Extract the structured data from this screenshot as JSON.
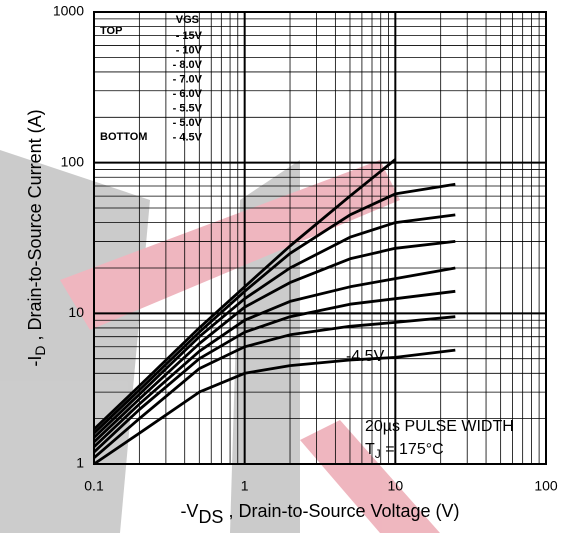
{
  "chart_data": {
    "type": "line",
    "x_label": {
      "prefix": "-V",
      "sub": "DS",
      "rest": " , Drain-to-Source Voltage (V)"
    },
    "y_label": {
      "prefix": "-I",
      "sub": "D",
      "rest": " , Drain-to-Source Current (A)"
    },
    "x": [
      0.1,
      0.2,
      0.5,
      1,
      2,
      5,
      10,
      25
    ],
    "series": [
      {
        "name": "- 15V",
        "color": "#000000",
        "values": [
          1.7,
          3.3,
          8,
          15,
          28,
          60,
          105,
          null
        ]
      },
      {
        "name": "- 10V",
        "color": "#000000",
        "values": [
          1.6,
          3.1,
          7.5,
          14,
          25,
          45,
          62,
          72
        ]
      },
      {
        "name": "- 8.0V",
        "color": "#000000",
        "values": [
          1.5,
          2.9,
          7,
          12.5,
          20,
          32,
          40,
          45
        ]
      },
      {
        "name": "- 7.0V",
        "color": "#000000",
        "values": [
          1.4,
          2.7,
          6.3,
          11,
          16,
          23,
          27,
          30
        ]
      },
      {
        "name": "- 6.0V",
        "color": "#000000",
        "values": [
          1.3,
          2.5,
          5.6,
          9,
          12,
          15,
          17,
          20
        ]
      },
      {
        "name": "- 5.5V",
        "color": "#000000",
        "values": [
          1.2,
          2.3,
          5,
          7.5,
          9.5,
          11.5,
          12.5,
          14
        ]
      },
      {
        "name": "- 5.0V",
        "color": "#000000",
        "values": [
          1.1,
          2.0,
          4.3,
          6,
          7.2,
          8.2,
          8.7,
          9.5
        ]
      },
      {
        "name": "- 4.5V",
        "color": "#000000",
        "values": [
          1.0,
          1.6,
          3,
          4,
          4.5,
          4.9,
          5.1,
          5.7
        ]
      }
    ],
    "legend_title": "VGS",
    "legend_top": "TOP",
    "legend_bottom": "BOTTOM",
    "xlim": [
      0.1,
      100
    ],
    "ylim": [
      1,
      1000
    ],
    "xticks": [
      0.1,
      1,
      10,
      100
    ],
    "yticks": [
      1,
      10,
      100,
      1000
    ],
    "log_x": true,
    "log_y": true,
    "grid": true,
    "minor_grid": true,
    "annotations": {
      "curve_label": "-4.5V",
      "pulse": "20µs PULSE WIDTH",
      "tj": {
        "prefix": "T",
        "sub": "J",
        "rest": " = 175°C"
      }
    }
  }
}
